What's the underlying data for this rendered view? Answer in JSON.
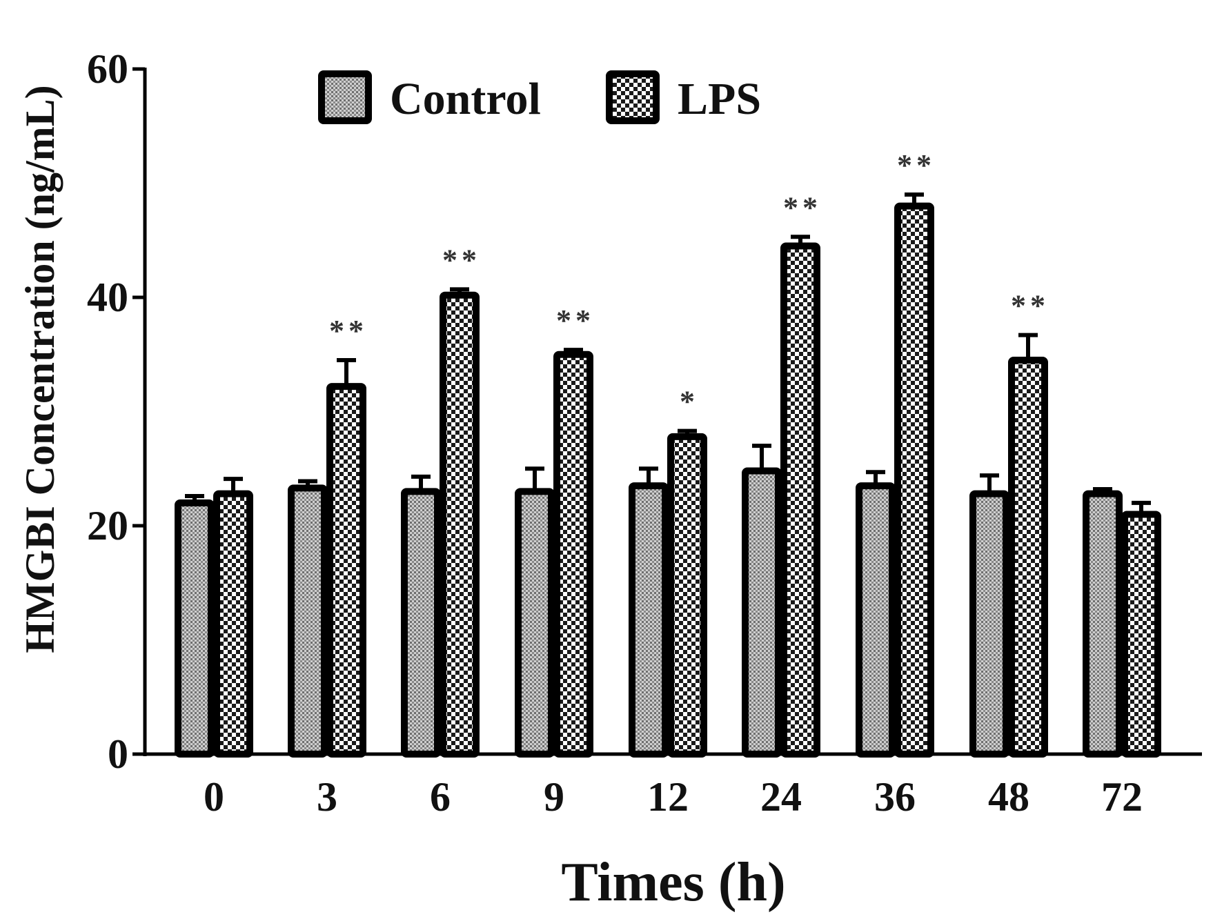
{
  "chart_data": {
    "type": "bar",
    "categories": [
      "0",
      "3",
      "6",
      "9",
      "12",
      "24",
      "36",
      "48",
      "72"
    ],
    "series": [
      {
        "name": "Control",
        "values": [
          22,
          23.3,
          23,
          23,
          23.5,
          24.8,
          23.5,
          22.8,
          22.8
        ],
        "errors": [
          0.6,
          0.6,
          1.3,
          2.0,
          1.5,
          2.2,
          1.2,
          1.6,
          0.4
        ]
      },
      {
        "name": "LPS",
        "values": [
          22.8,
          32.2,
          40.2,
          35.0,
          27.8,
          44.5,
          48.0,
          34.5,
          21.0
        ],
        "errors": [
          1.3,
          2.3,
          0.5,
          0.4,
          0.5,
          0.8,
          1.0,
          2.2,
          1.0
        ]
      }
    ],
    "significance": [
      "",
      "**",
      "**",
      "**",
      "*",
      "**",
      "**",
      "**",
      ""
    ],
    "xlabel": "Times (h)",
    "ylabel": "HMGBI Concentration (ng/mL)",
    "ylim": [
      0,
      60
    ],
    "yticks": [
      "0",
      "20",
      "40",
      "60"
    ],
    "legend": [
      "Control",
      "LPS"
    ],
    "legend_position": "top-center",
    "grid": false
  }
}
